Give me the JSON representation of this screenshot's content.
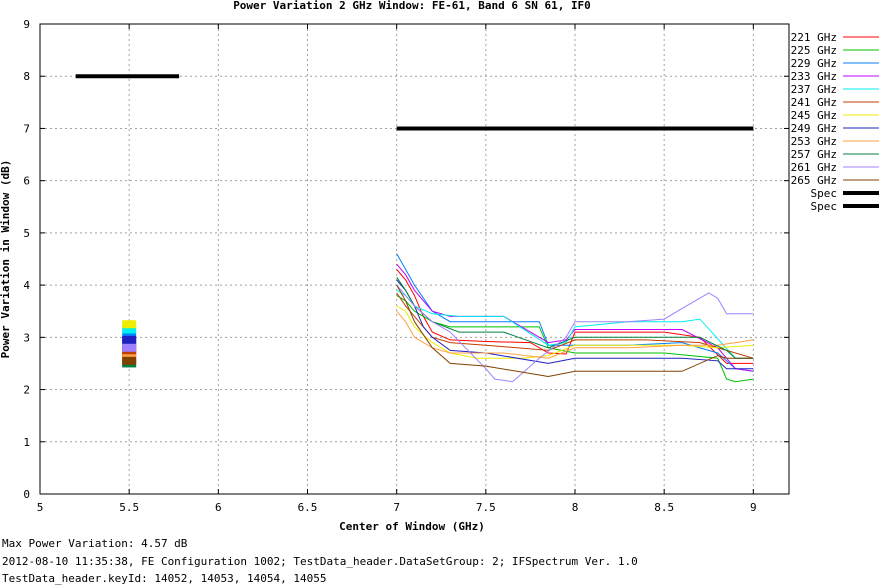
{
  "chart_data": {
    "type": "line",
    "title": "Power Variation 2 GHz Window: FE-61, Band 6 SN 61, IF0",
    "xlabel": "Center of Window (GHz)",
    "ylabel": "Power Variation in Window (dB)",
    "xlim": [
      5,
      9.2
    ],
    "ylim": [
      0,
      9
    ],
    "xticks": [
      "5",
      "5.5",
      "6",
      "6.5",
      "7",
      "7.5",
      "8",
      "8.5",
      "9"
    ],
    "yticks": [
      "0",
      "1",
      "2",
      "3",
      "4",
      "5",
      "6",
      "7",
      "8",
      "9"
    ],
    "grid": true,
    "legend_position": "right",
    "series": [
      {
        "name": "221 GHz",
        "color": "#ff0000",
        "x": [
          5.5,
          7.0,
          7.05,
          7.1,
          7.15,
          7.2,
          7.3,
          7.5,
          7.75,
          7.85,
          7.95,
          8.0,
          8.2,
          8.5,
          8.7,
          8.85,
          9.0
        ],
        "y": [
          2.82,
          4.3,
          4.1,
          3.8,
          3.4,
          3.1,
          2.95,
          2.92,
          2.9,
          2.7,
          2.68,
          3.1,
          3.1,
          3.1,
          3.0,
          2.5,
          2.5
        ]
      },
      {
        "name": "225 GHz",
        "color": "#00c000",
        "x": [
          5.5,
          7.0,
          7.05,
          7.1,
          7.2,
          7.3,
          7.5,
          7.8,
          7.85,
          8.0,
          8.2,
          8.5,
          8.8,
          8.85,
          8.9,
          9.0
        ],
        "y": [
          2.9,
          3.8,
          3.7,
          3.5,
          3.3,
          3.2,
          3.2,
          3.2,
          2.8,
          2.7,
          2.7,
          2.7,
          2.6,
          2.2,
          2.15,
          2.2
        ]
      },
      {
        "name": "229 GHz",
        "color": "#0080ff",
        "x": [
          5.5,
          7.0,
          7.05,
          7.1,
          7.2,
          7.3,
          7.5,
          7.8,
          7.85,
          8.0,
          8.3,
          8.6,
          8.8,
          8.9,
          9.0
        ],
        "y": [
          3.0,
          4.6,
          4.3,
          4.0,
          3.5,
          3.3,
          3.3,
          3.3,
          2.85,
          2.85,
          2.85,
          2.9,
          2.7,
          2.4,
          2.35
        ]
      },
      {
        "name": "233 GHz",
        "color": "#c000ff",
        "x": [
          5.5,
          7.0,
          7.05,
          7.1,
          7.15,
          7.2,
          7.3,
          7.6,
          7.85,
          7.95,
          8.0,
          8.3,
          8.6,
          8.8,
          8.9,
          9.0
        ],
        "y": [
          2.7,
          4.4,
          4.2,
          3.9,
          3.7,
          3.5,
          3.4,
          3.4,
          2.9,
          2.95,
          3.15,
          3.15,
          3.15,
          2.8,
          2.4,
          2.35
        ]
      },
      {
        "name": "237 GHz",
        "color": "#00eeee",
        "x": [
          5.5,
          7.0,
          7.05,
          7.1,
          7.2,
          7.35,
          7.6,
          7.85,
          7.95,
          8.0,
          8.3,
          8.6,
          8.7,
          8.9,
          9.0
        ],
        "y": [
          3.15,
          3.9,
          3.8,
          3.6,
          3.45,
          3.4,
          3.4,
          2.85,
          2.9,
          3.2,
          3.3,
          3.3,
          3.35,
          2.6,
          2.6
        ]
      },
      {
        "name": "241 GHz",
        "color": "#c04000",
        "x": [
          5.5,
          7.0,
          7.05,
          7.1,
          7.2,
          7.3,
          7.5,
          7.85,
          8.0,
          8.4,
          8.7,
          8.9,
          9.0
        ],
        "y": [
          2.75,
          3.85,
          3.6,
          3.4,
          3.0,
          2.9,
          2.85,
          2.75,
          2.95,
          2.95,
          2.9,
          2.7,
          2.6
        ]
      },
      {
        "name": "245 GHz",
        "color": "#eeee00",
        "x": [
          5.5,
          7.0,
          7.05,
          7.1,
          7.2,
          7.3,
          7.45,
          7.7,
          7.85,
          8.0,
          8.3,
          8.6,
          8.8,
          9.0
        ],
        "y": [
          3.25,
          3.6,
          3.5,
          3.2,
          2.9,
          2.7,
          2.6,
          2.6,
          2.65,
          2.85,
          2.85,
          2.85,
          2.8,
          2.85
        ]
      },
      {
        "name": "249 GHz",
        "color": "#2020c0",
        "x": [
          5.5,
          7.0,
          7.05,
          7.1,
          7.15,
          7.2,
          7.3,
          7.5,
          7.85,
          8.0,
          8.3,
          8.6,
          8.8,
          8.85,
          9.0
        ],
        "y": [
          2.95,
          4.1,
          3.9,
          3.6,
          3.2,
          3.0,
          2.75,
          2.7,
          2.5,
          2.6,
          2.6,
          2.6,
          2.55,
          2.4,
          2.4
        ]
      },
      {
        "name": "253 GHz",
        "color": "#ffa040",
        "x": [
          5.5,
          7.0,
          7.05,
          7.1,
          7.2,
          7.3,
          7.6,
          7.85,
          8.0,
          8.3,
          8.6,
          8.8,
          8.9,
          9.0
        ],
        "y": [
          2.6,
          3.5,
          3.3,
          3.0,
          2.8,
          2.7,
          2.7,
          2.6,
          2.8,
          2.8,
          2.85,
          2.85,
          2.9,
          2.95
        ]
      },
      {
        "name": "257 GHz",
        "color": "#008040",
        "x": [
          5.5,
          7.0,
          7.05,
          7.1,
          7.2,
          7.35,
          7.6,
          7.85,
          8.0,
          8.3,
          8.7,
          8.85,
          8.9,
          9.0
        ],
        "y": [
          2.5,
          4.15,
          3.9,
          3.6,
          3.3,
          3.1,
          3.1,
          2.8,
          3.0,
          3.0,
          3.0,
          2.75,
          2.6,
          2.6
        ]
      },
      {
        "name": "261 GHz",
        "color": "#a080ff",
        "x": [
          5.5,
          7.0,
          7.05,
          7.1,
          7.2,
          7.3,
          7.5,
          7.55,
          7.65,
          7.8,
          7.95,
          8.0,
          8.3,
          8.5,
          8.6,
          8.75,
          8.8,
          8.85,
          9.0
        ],
        "y": [
          2.8,
          4.0,
          3.8,
          3.6,
          3.3,
          3.1,
          2.4,
          2.2,
          2.15,
          2.6,
          3.0,
          3.3,
          3.3,
          3.35,
          3.55,
          3.85,
          3.75,
          3.45,
          3.45
        ]
      },
      {
        "name": "265 GHz",
        "color": "#804000",
        "x": [
          5.5,
          7.0,
          7.05,
          7.1,
          7.2,
          7.3,
          7.5,
          7.85,
          8.0,
          8.3,
          8.6,
          8.8,
          8.85,
          9.0
        ],
        "y": [
          2.55,
          4.0,
          3.7,
          3.3,
          2.8,
          2.5,
          2.45,
          2.25,
          2.35,
          2.35,
          2.35,
          2.65,
          2.6,
          2.6
        ]
      }
    ],
    "spec": [
      {
        "name": "Spec",
        "color": "#000000",
        "x": [
          5.2,
          5.78
        ],
        "y": [
          8,
          8
        ]
      },
      {
        "name": "Spec",
        "color": "#000000",
        "x": [
          7.0,
          9.0
        ],
        "y": [
          7,
          7
        ]
      }
    ]
  },
  "footer": {
    "line1": "Max Power Variation: 4.57 dB",
    "line2": "2012-08-10 11:35:38, FE Configuration 1002; TestData_header.DataSetGroup: 2; IFSpectrum Ver. 1.0",
    "line3": "TestData_header.keyId: 14052, 14053, 14054, 14055"
  }
}
